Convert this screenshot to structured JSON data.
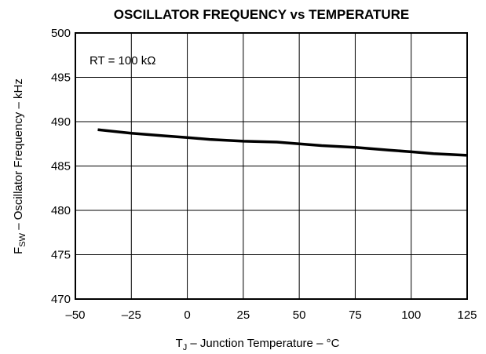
{
  "chart_data": {
    "type": "line",
    "title": "OSCILLATOR FREQUENCY vs TEMPERATURE",
    "xlabel": {
      "prefix": "T",
      "subscript": "J",
      "rest": " – Junction Temperature – °C"
    },
    "ylabel": {
      "prefix": "F",
      "subscript": "SW",
      "rest": " – Oscillator Frequency – kHz"
    },
    "annotation": "RT = 100 kΩ",
    "xlim": [
      -50,
      125
    ],
    "ylim": [
      470,
      500
    ],
    "xticks": [
      -50,
      -25,
      0,
      25,
      50,
      75,
      100,
      125
    ],
    "yticks": [
      470,
      475,
      480,
      485,
      490,
      495,
      500
    ],
    "xtick_labels": [
      "–50",
      "–25",
      "0",
      "25",
      "50",
      "75",
      "100",
      "125"
    ],
    "ytick_labels": [
      "470",
      "475",
      "480",
      "485",
      "490",
      "495",
      "500"
    ],
    "grid": true,
    "series": [
      {
        "color": "#000000",
        "x": [
          -40,
          -25,
          -10,
          0,
          10,
          25,
          40,
          50,
          60,
          75,
          90,
          100,
          110,
          125
        ],
        "y": [
          489.1,
          488.7,
          488.4,
          488.2,
          488.0,
          487.8,
          487.7,
          487.5,
          487.3,
          487.1,
          486.8,
          486.6,
          486.4,
          486.2
        ]
      }
    ]
  }
}
